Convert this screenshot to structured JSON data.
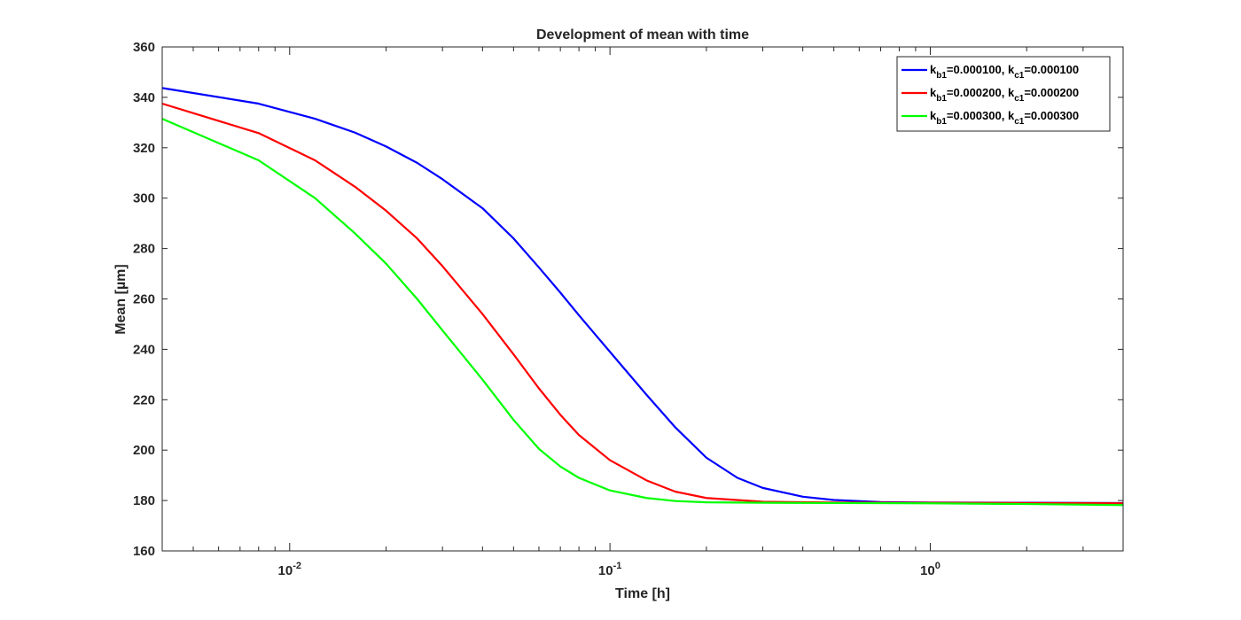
{
  "chart_data": {
    "type": "line",
    "title": "Development of mean with time",
    "xlabel": "Time [h]",
    "ylabel": "Mean [µm]",
    "xscale": "log",
    "xlim": [
      0.004,
      4.0
    ],
    "ylim": [
      160,
      360
    ],
    "yticks": [
      160,
      180,
      200,
      220,
      240,
      260,
      280,
      300,
      320,
      340,
      360
    ],
    "xticks": [
      {
        "value": 0.01,
        "base": "10",
        "exp": "-2"
      },
      {
        "value": 0.1,
        "base": "10",
        "exp": "-1"
      },
      {
        "value": 1,
        "base": "10",
        "exp": "0"
      }
    ],
    "grid": false,
    "legend_position": "top-right",
    "series": [
      {
        "name": {
          "p1": "k",
          "s1": "b1",
          "p2": "=0.000100, k",
          "s2": "c1",
          "p3": "=0.000100"
        },
        "color": "#0000ff",
        "points": [
          [
            0.004,
            343.7
          ],
          [
            0.008,
            337.5
          ],
          [
            0.012,
            331.5
          ],
          [
            0.016,
            326
          ],
          [
            0.02,
            320.5
          ],
          [
            0.025,
            314
          ],
          [
            0.03,
            307.5
          ],
          [
            0.04,
            296
          ],
          [
            0.05,
            284
          ],
          [
            0.06,
            272.5
          ],
          [
            0.07,
            262.5
          ],
          [
            0.08,
            253.5
          ],
          [
            0.1,
            239
          ],
          [
            0.13,
            222
          ],
          [
            0.16,
            209
          ],
          [
            0.2,
            197
          ],
          [
            0.25,
            189
          ],
          [
            0.3,
            185
          ],
          [
            0.4,
            181.5
          ],
          [
            0.5,
            180.2
          ],
          [
            0.7,
            179.4
          ],
          [
            1.0,
            179.2
          ],
          [
            2.0,
            179.1
          ],
          [
            4.0,
            179.0
          ]
        ]
      },
      {
        "name": {
          "p1": "k",
          "s1": "b1",
          "p2": "=0.000200, k",
          "s2": "c1",
          "p3": "=0.000200"
        },
        "color": "#ff0000",
        "points": [
          [
            0.004,
            337.5
          ],
          [
            0.008,
            325.8
          ],
          [
            0.012,
            315
          ],
          [
            0.016,
            304.5
          ],
          [
            0.02,
            295
          ],
          [
            0.025,
            284
          ],
          [
            0.03,
            273
          ],
          [
            0.04,
            254
          ],
          [
            0.05,
            238
          ],
          [
            0.06,
            224.5
          ],
          [
            0.07,
            214
          ],
          [
            0.08,
            206
          ],
          [
            0.1,
            196
          ],
          [
            0.13,
            188
          ],
          [
            0.16,
            183.5
          ],
          [
            0.2,
            181
          ],
          [
            0.3,
            179.5
          ],
          [
            0.5,
            179.2
          ],
          [
            1.0,
            179.1
          ],
          [
            2.0,
            179.0
          ],
          [
            4.0,
            178.9
          ]
        ]
      },
      {
        "name": {
          "p1": "k",
          "s1": "b1",
          "p2": "=0.000300, k",
          "s2": "c1",
          "p3": "=0.000300"
        },
        "color": "#00ff00",
        "points": [
          [
            0.004,
            331.5
          ],
          [
            0.008,
            315
          ],
          [
            0.012,
            300
          ],
          [
            0.016,
            286
          ],
          [
            0.02,
            274
          ],
          [
            0.025,
            260
          ],
          [
            0.03,
            247.5
          ],
          [
            0.04,
            228
          ],
          [
            0.05,
            212
          ],
          [
            0.06,
            200.5
          ],
          [
            0.07,
            193.5
          ],
          [
            0.08,
            189
          ],
          [
            0.1,
            184
          ],
          [
            0.13,
            181
          ],
          [
            0.16,
            179.8
          ],
          [
            0.2,
            179.3
          ],
          [
            0.3,
            179.1
          ],
          [
            0.5,
            179.0
          ],
          [
            1.0,
            178.9
          ],
          [
            2.0,
            178.6
          ],
          [
            4.0,
            178.2
          ]
        ]
      }
    ]
  }
}
